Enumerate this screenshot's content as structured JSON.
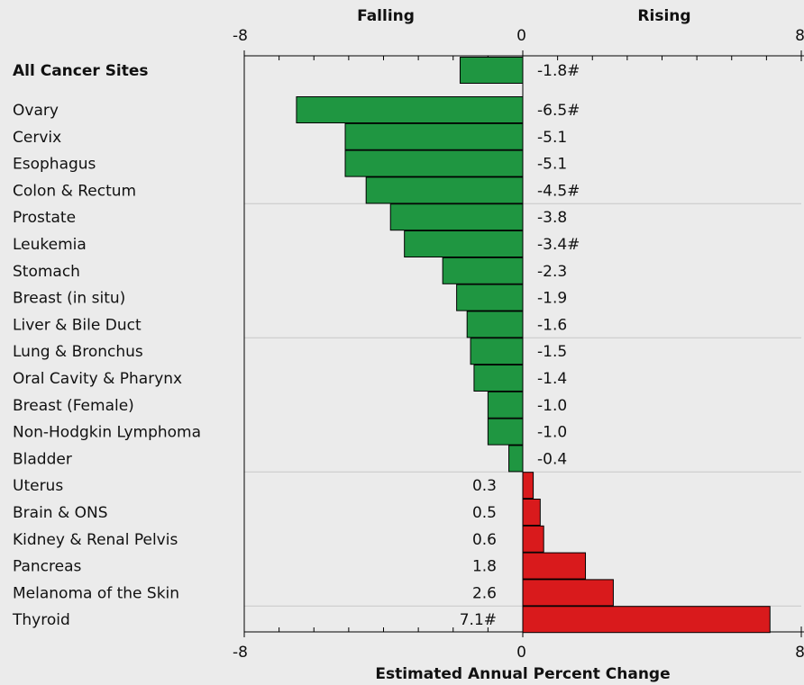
{
  "chart_data": {
    "type": "bar",
    "orientation": "horizontal",
    "left_header": "Falling",
    "right_header": "Rising",
    "xlabel": "Estimated Annual Percent Change",
    "categories": [
      "All Cancer Sites",
      "Ovary",
      "Cervix",
      "Esophagus",
      "Colon & Rectum",
      "Prostate",
      "Leukemia",
      "Stomach",
      "Breast (in situ)",
      "Liver & Bile Duct",
      "Lung & Bronchus",
      "Oral Cavity & Pharynx",
      "Breast (Female)",
      "Non-Hodgkin Lymphoma",
      "Bladder",
      "Uterus",
      "Brain & ONS",
      "Kidney & Renal Pelvis",
      "Pancreas",
      "Melanoma of the Skin",
      "Thyroid"
    ],
    "values": [
      -1.8,
      -6.5,
      -5.1,
      -5.1,
      -4.5,
      -3.8,
      -3.4,
      -2.3,
      -1.9,
      -1.6,
      -1.5,
      -1.4,
      -1.0,
      -1.0,
      -0.4,
      0.3,
      0.5,
      0.6,
      1.8,
      2.6,
      7.1
    ],
    "value_labels": [
      "-1.8#",
      "-6.5#",
      "-5.1",
      "-5.1",
      "-4.5#",
      "-3.8",
      "-3.4#",
      "-2.3",
      "-1.9",
      "-1.6",
      "-1.5",
      "-1.4",
      "-1.0",
      "-1.0",
      "-0.4",
      "0.3",
      "0.5",
      "0.6",
      "1.8",
      "2.6",
      "7.1#"
    ],
    "negative_color": "#1f9641",
    "positive_color": "#d91a1c",
    "xlim": [
      -8,
      8
    ],
    "xticks": [
      -8,
      0,
      8
    ],
    "xminorticks": [
      -7,
      -6,
      -5,
      -4,
      -3,
      -2,
      -1,
      1,
      2,
      3,
      4,
      5,
      6,
      7
    ]
  }
}
